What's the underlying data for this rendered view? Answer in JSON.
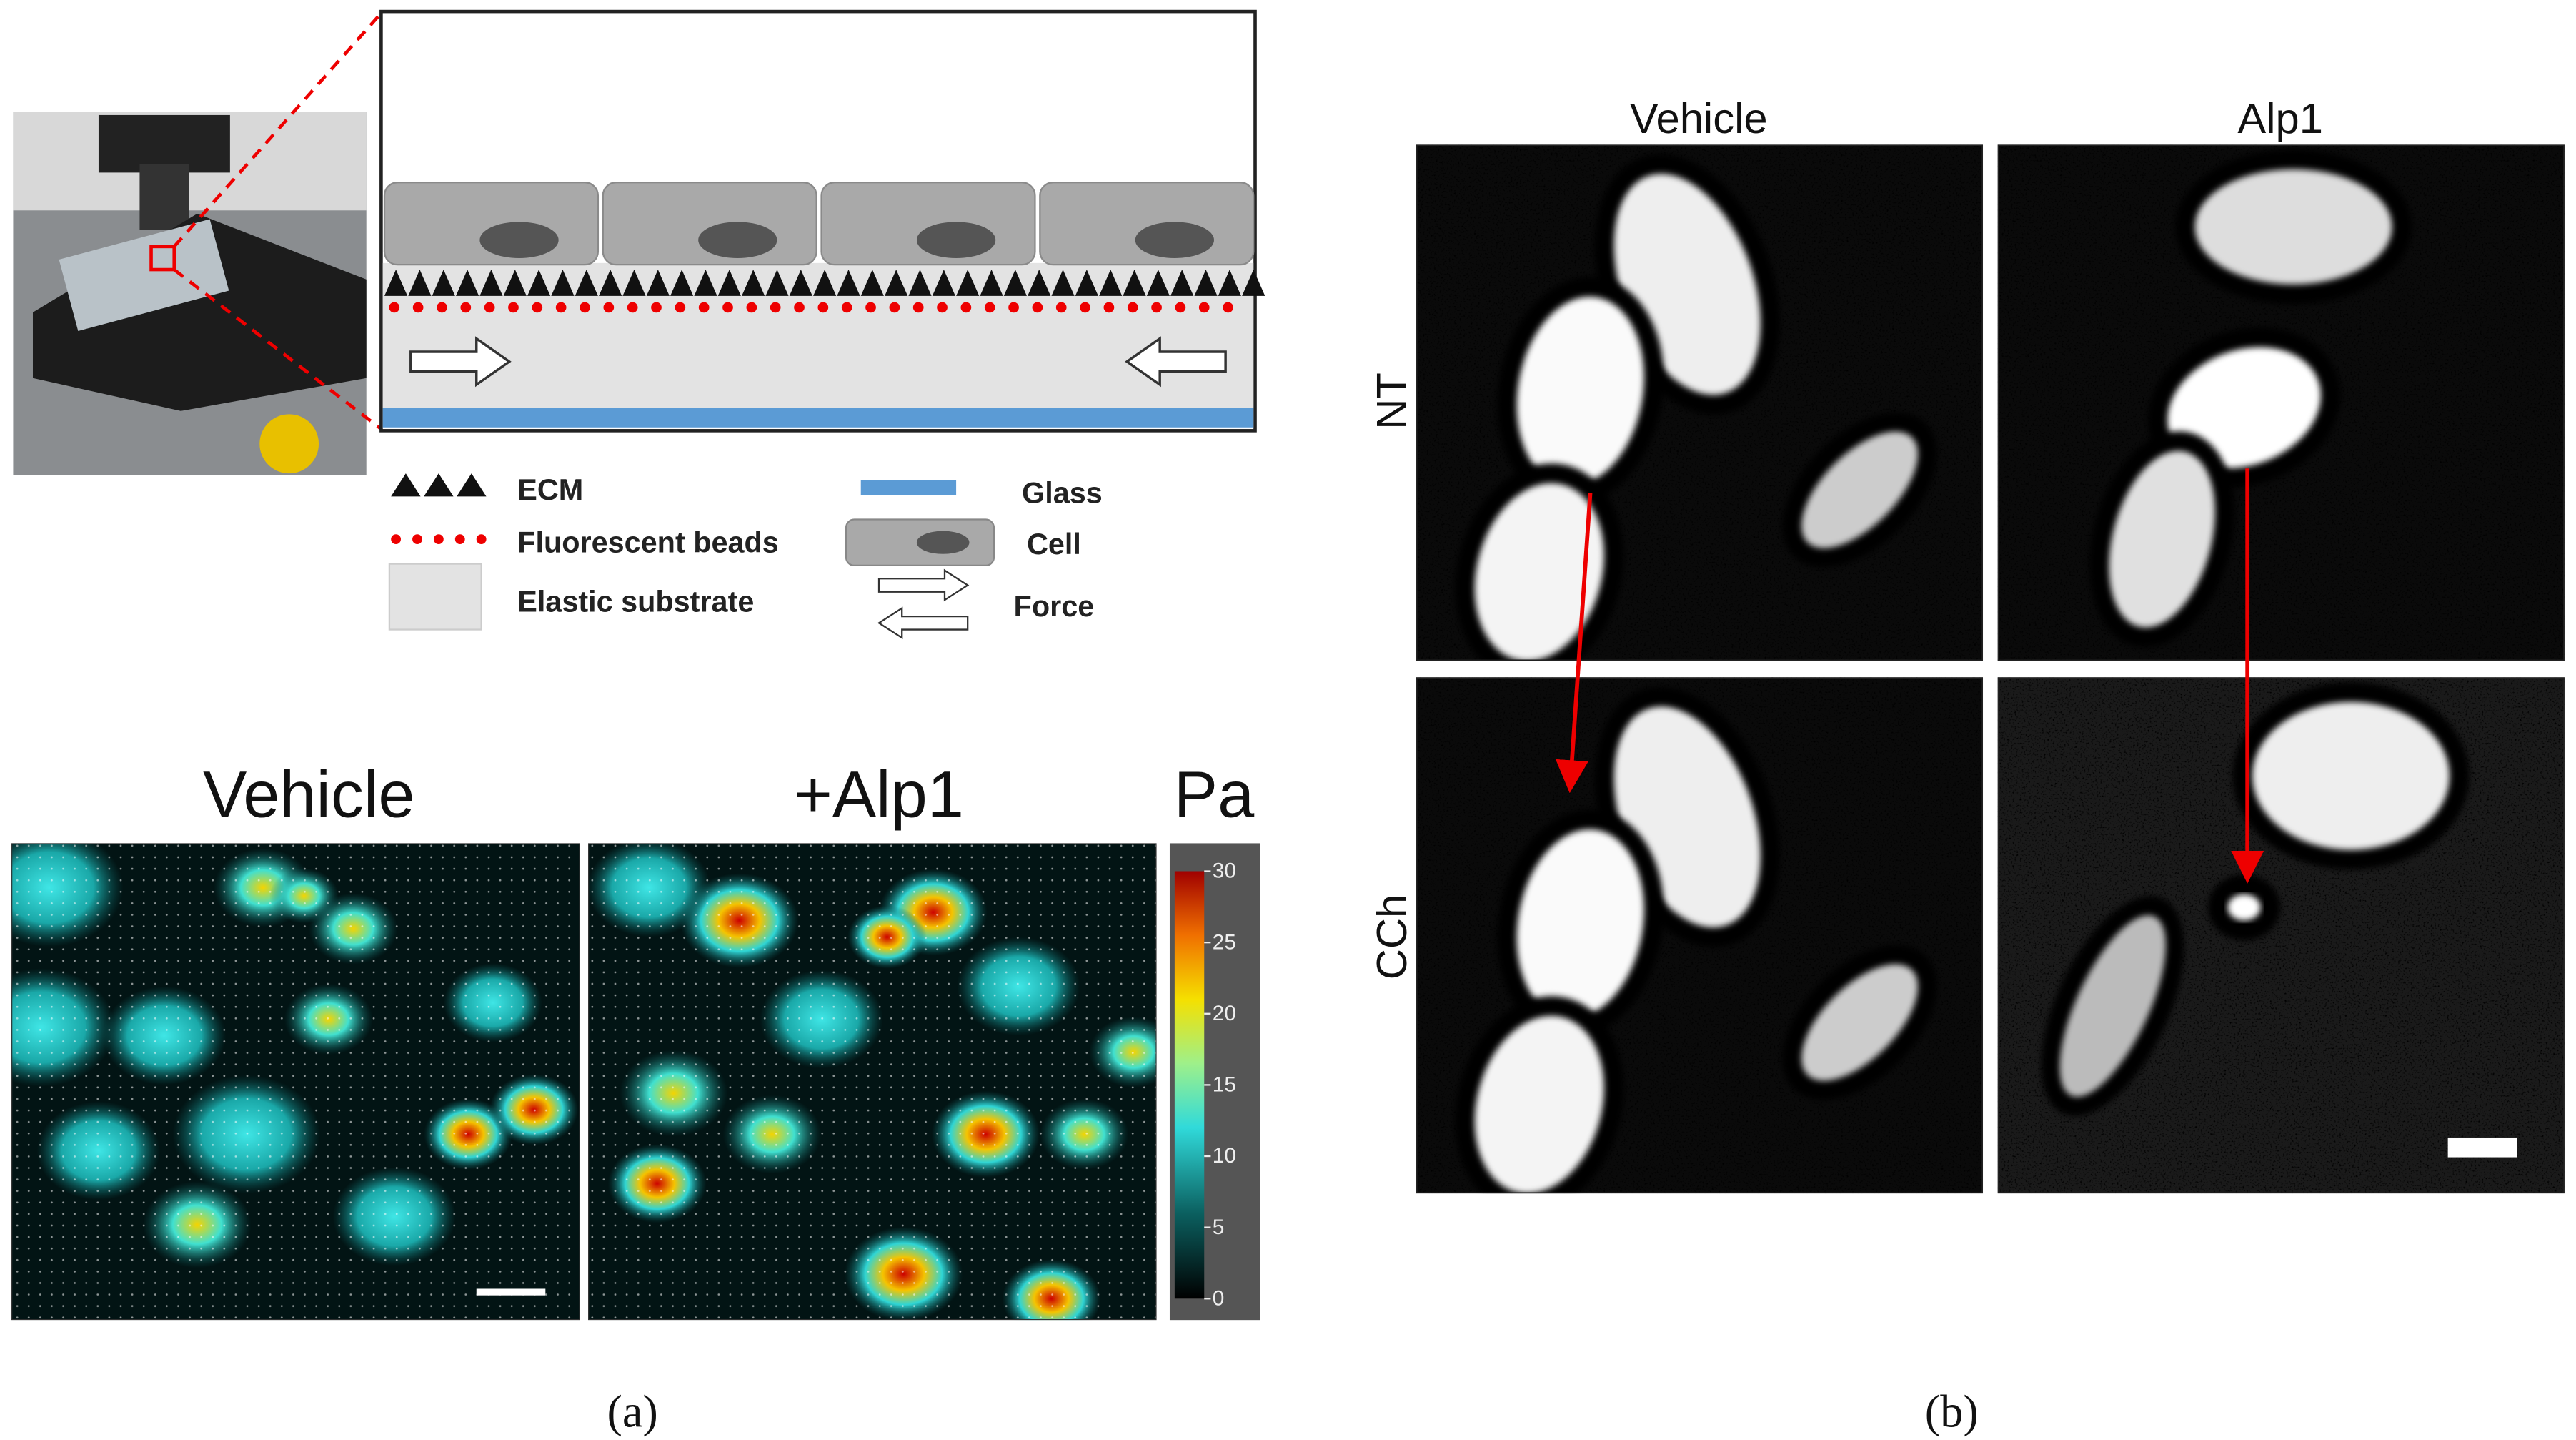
{
  "panel_a": {
    "legend": [
      "ECM",
      "Fluorescent beads",
      "Elastic substrate",
      "Glass",
      "Cell",
      "Force"
    ],
    "heatmap_titles": [
      "Vehicle",
      "+Alp1"
    ],
    "colorbar": {
      "unit": "Pa",
      "range": [
        0,
        30
      ],
      "ticks": [
        0,
        5,
        10,
        15,
        20,
        25,
        30
      ]
    },
    "label": "(a)"
  },
  "panel_b": {
    "columns": [
      "Vehicle",
      "Alp1"
    ],
    "rows": [
      "NT",
      "CCh"
    ],
    "label": "(b)"
  }
}
